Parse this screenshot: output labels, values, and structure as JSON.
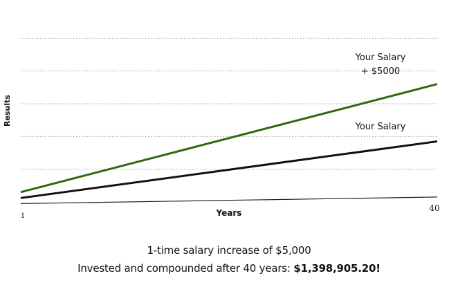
{
  "chart_data": {
    "type": "line",
    "xlabel": "Years",
    "ylabel": "Results",
    "x_ticks": [
      "1",
      "40"
    ],
    "xlim": [
      1,
      40
    ],
    "ylim": [
      0,
      6
    ],
    "grid": true,
    "series": [
      {
        "name": "Your Salary\n+ $5000",
        "label_lines": [
          "Your Salary",
          "+ $5000"
        ],
        "color": "#2d6a0f",
        "x": [
          1,
          40
        ],
        "y": [
          0.3,
          3.6
        ]
      },
      {
        "name": "Your Salary",
        "label_lines": [
          "Your Salary"
        ],
        "color": "#111111",
        "x": [
          1,
          40
        ],
        "y": [
          0.12,
          1.85
        ]
      },
      {
        "color": "#222222",
        "x": [
          1,
          40
        ],
        "y": [
          -0.05,
          0.15
        ]
      }
    ]
  },
  "caption": {
    "line1": "1-time salary increase of $5,000",
    "line2_prefix": "Invested and compounded after 40 years: ",
    "line2_amount": "$1,398,905.20!"
  }
}
